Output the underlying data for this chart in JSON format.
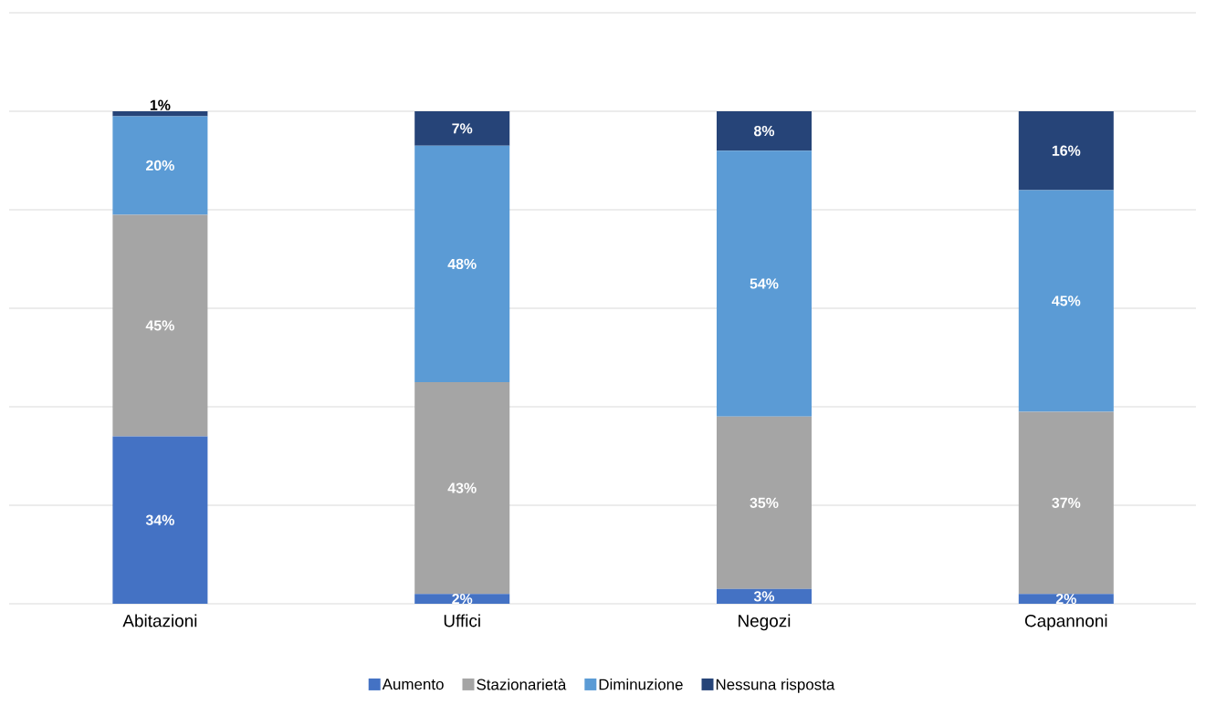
{
  "chart_data": {
    "type": "bar",
    "stacked": true,
    "categories": [
      "Abitazioni",
      "Uffici",
      "Negozi",
      "Capannoni"
    ],
    "series": [
      {
        "name": "Aumento",
        "color": "#4472c4",
        "values": [
          34,
          2,
          3,
          2
        ],
        "value_labels": [
          "34%",
          "2%",
          "3%",
          "2%"
        ]
      },
      {
        "name": "Stazionarietà",
        "color": "#a5a5a5",
        "values": [
          45,
          43,
          35,
          37
        ],
        "value_labels": [
          "45%",
          "43%",
          "35%",
          "37%"
        ]
      },
      {
        "name": "Diminuzione",
        "color": "#5b9bd5",
        "values": [
          20,
          48,
          54,
          45
        ],
        "value_labels": [
          "20%",
          "48%",
          "54%",
          "45%"
        ]
      },
      {
        "name": "Nessuna risposta",
        "color": "#264478",
        "values": [
          1,
          7,
          8,
          16
        ],
        "value_labels": [
          "1%",
          "7%",
          "8%",
          "16%"
        ]
      }
    ],
    "ylim": [
      0,
      120
    ],
    "yticks": [
      {
        "value": 0,
        "label": null
      },
      {
        "value": 20,
        "label": null
      },
      {
        "value": 40,
        "label": null
      },
      {
        "value": 60,
        "label": null
      },
      {
        "value": 80,
        "label": null
      },
      {
        "value": 100,
        "label": null
      },
      {
        "value": 120,
        "label": null
      }
    ],
    "tick_labels": "x",
    "grid": "y",
    "legend": "bottom"
  }
}
